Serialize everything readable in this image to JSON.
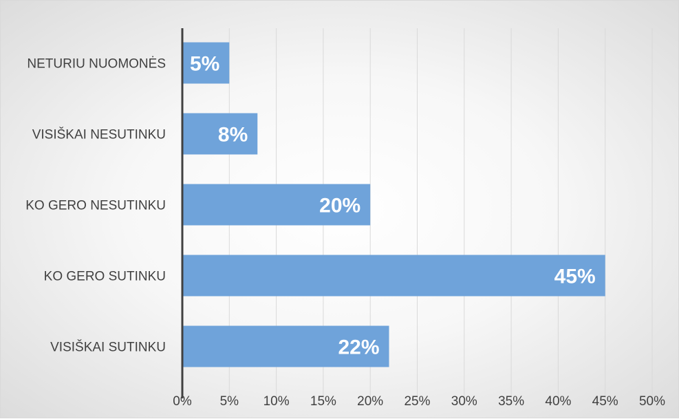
{
  "colors": {
    "bar": "#6fa3da",
    "axis": "#404040",
    "grid": "#d9d9d9",
    "label_text": "#ffffff"
  },
  "chart_data": {
    "type": "bar",
    "orientation": "horizontal",
    "categories": [
      "NETURIU NUOMONĖS",
      "VISIŠKAI NESUTINKU",
      "KO GERO NESUTINKU",
      "KO GERO SUTINKU",
      "VISIŠKAI SUTINKU"
    ],
    "values": [
      5,
      8,
      20,
      45,
      22
    ],
    "data_labels": [
      "5%",
      "8%",
      "20%",
      "45%",
      "22%"
    ],
    "x_ticks": [
      "0%",
      "5%",
      "10%",
      "15%",
      "20%",
      "25%",
      "30%",
      "35%",
      "40%",
      "45%",
      "50%"
    ],
    "xlim": [
      0,
      50
    ],
    "grid": true,
    "legend": "none",
    "title": "",
    "xlabel": "",
    "ylabel": ""
  }
}
